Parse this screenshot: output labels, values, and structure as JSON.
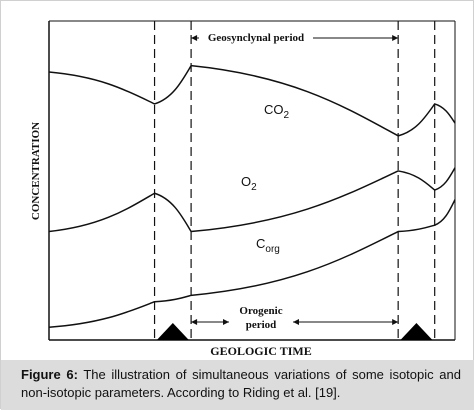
{
  "chart_data": {
    "type": "line",
    "xlabel": "GEOLOGIC TIME",
    "ylabel": "CONCENTRATION",
    "grid": false,
    "legend": "none",
    "annotations": {
      "top_period": "Geosynclynal period",
      "bottom_period_line1": "Orogenic",
      "bottom_period_line2": "period"
    },
    "x": [
      0,
      0.26,
      0.35,
      0.86,
      0.95,
      1.0
    ],
    "period_boundaries": [
      0.26,
      0.35,
      0.86,
      0.95
    ],
    "orogenic_events": [
      0.305,
      0.905
    ],
    "series": [
      {
        "name": "CO",
        "subscript": "2",
        "values": [
          0.84,
          0.74,
          0.86,
          0.64,
          0.74,
          0.68
        ]
      },
      {
        "name": "O",
        "subscript": "2",
        "values": [
          0.34,
          0.46,
          0.34,
          0.53,
          0.47,
          0.54
        ]
      },
      {
        "name": "C",
        "subscript": "org",
        "values": [
          0.04,
          0.12,
          0.14,
          0.34,
          0.36,
          0.44
        ]
      }
    ]
  },
  "caption": {
    "label": "Figure 6:",
    "text": " The illustration of simultaneous variations of some isotopic and non-isotopic parameters. According to Riding et al. [19]."
  },
  "colors": {
    "line": "#111111",
    "caption_bg": "#dcdcdc"
  }
}
